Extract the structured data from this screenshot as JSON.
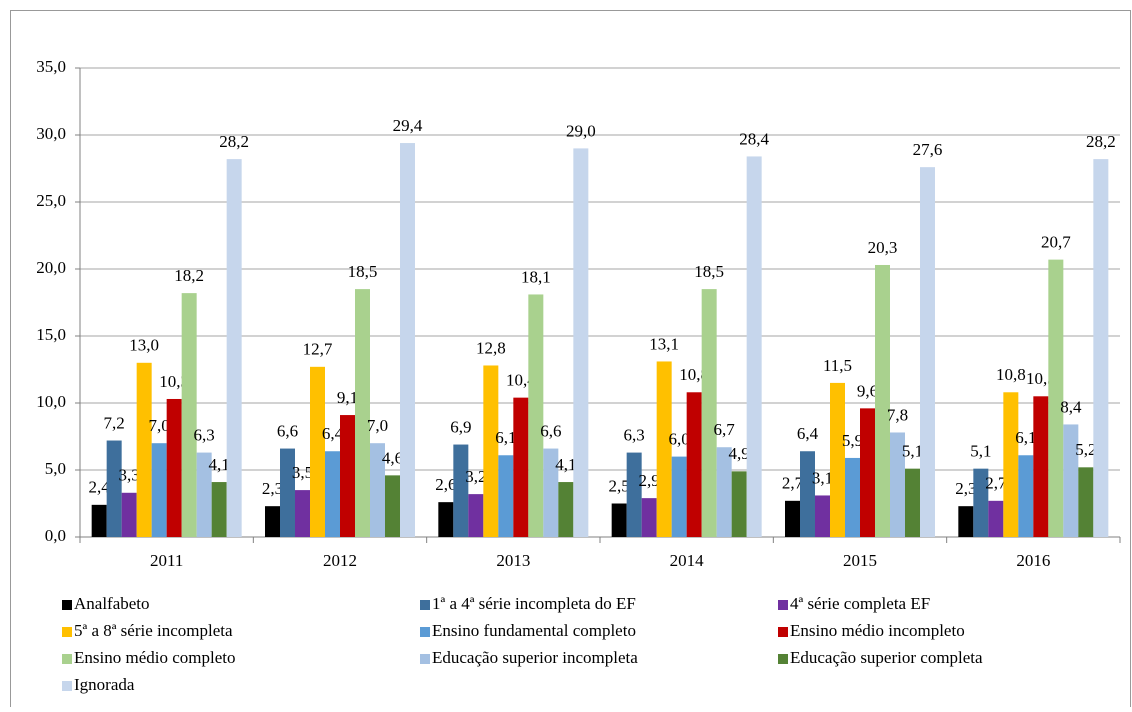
{
  "chart_data": {
    "type": "bar",
    "categories": [
      "2011",
      "2012",
      "2013",
      "2014",
      "2015",
      "2016"
    ],
    "series": [
      {
        "name": "Analfabeto",
        "color": "#000000",
        "values": [
          2.4,
          2.3,
          2.6,
          2.5,
          2.7,
          2.3
        ],
        "value_labels": [
          "2,4",
          "2,3",
          "2,6",
          "2,5",
          "2,7",
          "2,3"
        ]
      },
      {
        "name": "1ª a 4ª série incompleta do EF",
        "color": "#3e6f9c",
        "values": [
          7.2,
          6.6,
          6.9,
          6.3,
          6.4,
          5.1
        ],
        "value_labels": [
          "7,2",
          "6,6",
          "6,9",
          "6,3",
          "6,4",
          "5,1"
        ]
      },
      {
        "name": "4ª série completa EF",
        "color": "#7030a0",
        "values": [
          3.3,
          3.5,
          3.2,
          2.9,
          3.1,
          2.7
        ],
        "value_labels": [
          "3,3",
          "3,5",
          "3,2",
          "2,9",
          "3,1",
          "2,7"
        ]
      },
      {
        "name": "5ª a 8ª série incompleta",
        "color": "#ffc000",
        "values": [
          13.0,
          12.7,
          12.8,
          13.1,
          11.5,
          10.8
        ],
        "value_labels": [
          "13,0",
          "12,7",
          "12,8",
          "13,1",
          "11,5",
          "10,8"
        ]
      },
      {
        "name": "Ensino fundamental completo",
        "color": "#5b9bd5",
        "values": [
          7.0,
          6.4,
          6.1,
          6.0,
          5.9,
          6.1
        ],
        "value_labels": [
          "7,0",
          "6,4",
          "6,1",
          "6,0",
          "5,9",
          "6,1"
        ]
      },
      {
        "name": "Ensino médio incompleto",
        "color": "#c00000",
        "values": [
          10.3,
          9.1,
          10.4,
          10.8,
          9.6,
          10.5
        ],
        "value_labels": [
          "10,3",
          "9,1",
          "10,4",
          "10,8",
          "9,6",
          "10,5"
        ]
      },
      {
        "name": "Ensino médio completo",
        "color": "#a9d18e",
        "values": [
          18.2,
          18.5,
          18.1,
          18.5,
          20.3,
          20.7
        ],
        "value_labels": [
          "18,2",
          "18,5",
          "18,1",
          "18,5",
          "20,3",
          "20,7"
        ]
      },
      {
        "name": "Educação superior incompleta",
        "color": "#a4c0e2",
        "values": [
          6.3,
          7.0,
          6.6,
          6.7,
          7.8,
          8.4
        ],
        "value_labels": [
          "6,3",
          "7,0",
          "6,6",
          "6,7",
          "7,8",
          "8,4"
        ]
      },
      {
        "name": "Educação superior completa",
        "color": "#548235",
        "values": [
          4.1,
          4.6,
          4.1,
          4.9,
          5.1,
          5.2
        ],
        "value_labels": [
          "4,1",
          "4,6",
          "4,1",
          "4,9",
          "5,1",
          "5,2"
        ]
      },
      {
        "name": "Ignorada",
        "color": "#c6d6ec",
        "values": [
          28.2,
          29.4,
          29.0,
          28.4,
          27.6,
          28.2
        ],
        "value_labels": [
          "28,2",
          "29,4",
          "29,0",
          "28,4",
          "27,6",
          "28,2"
        ]
      }
    ],
    "ylim": [
      0,
      35
    ],
    "yticks": [
      {
        "value": 0,
        "label": "0,0"
      },
      {
        "value": 5,
        "label": "5,0"
      },
      {
        "value": 10,
        "label": "10,0"
      },
      {
        "value": 15,
        "label": "15,0"
      },
      {
        "value": 20,
        "label": "20,0"
      },
      {
        "value": 25,
        "label": "25,0"
      },
      {
        "value": 30,
        "label": "30,0"
      },
      {
        "value": 35,
        "label": "35,0"
      }
    ],
    "grid": true,
    "legend": "bottom"
  }
}
